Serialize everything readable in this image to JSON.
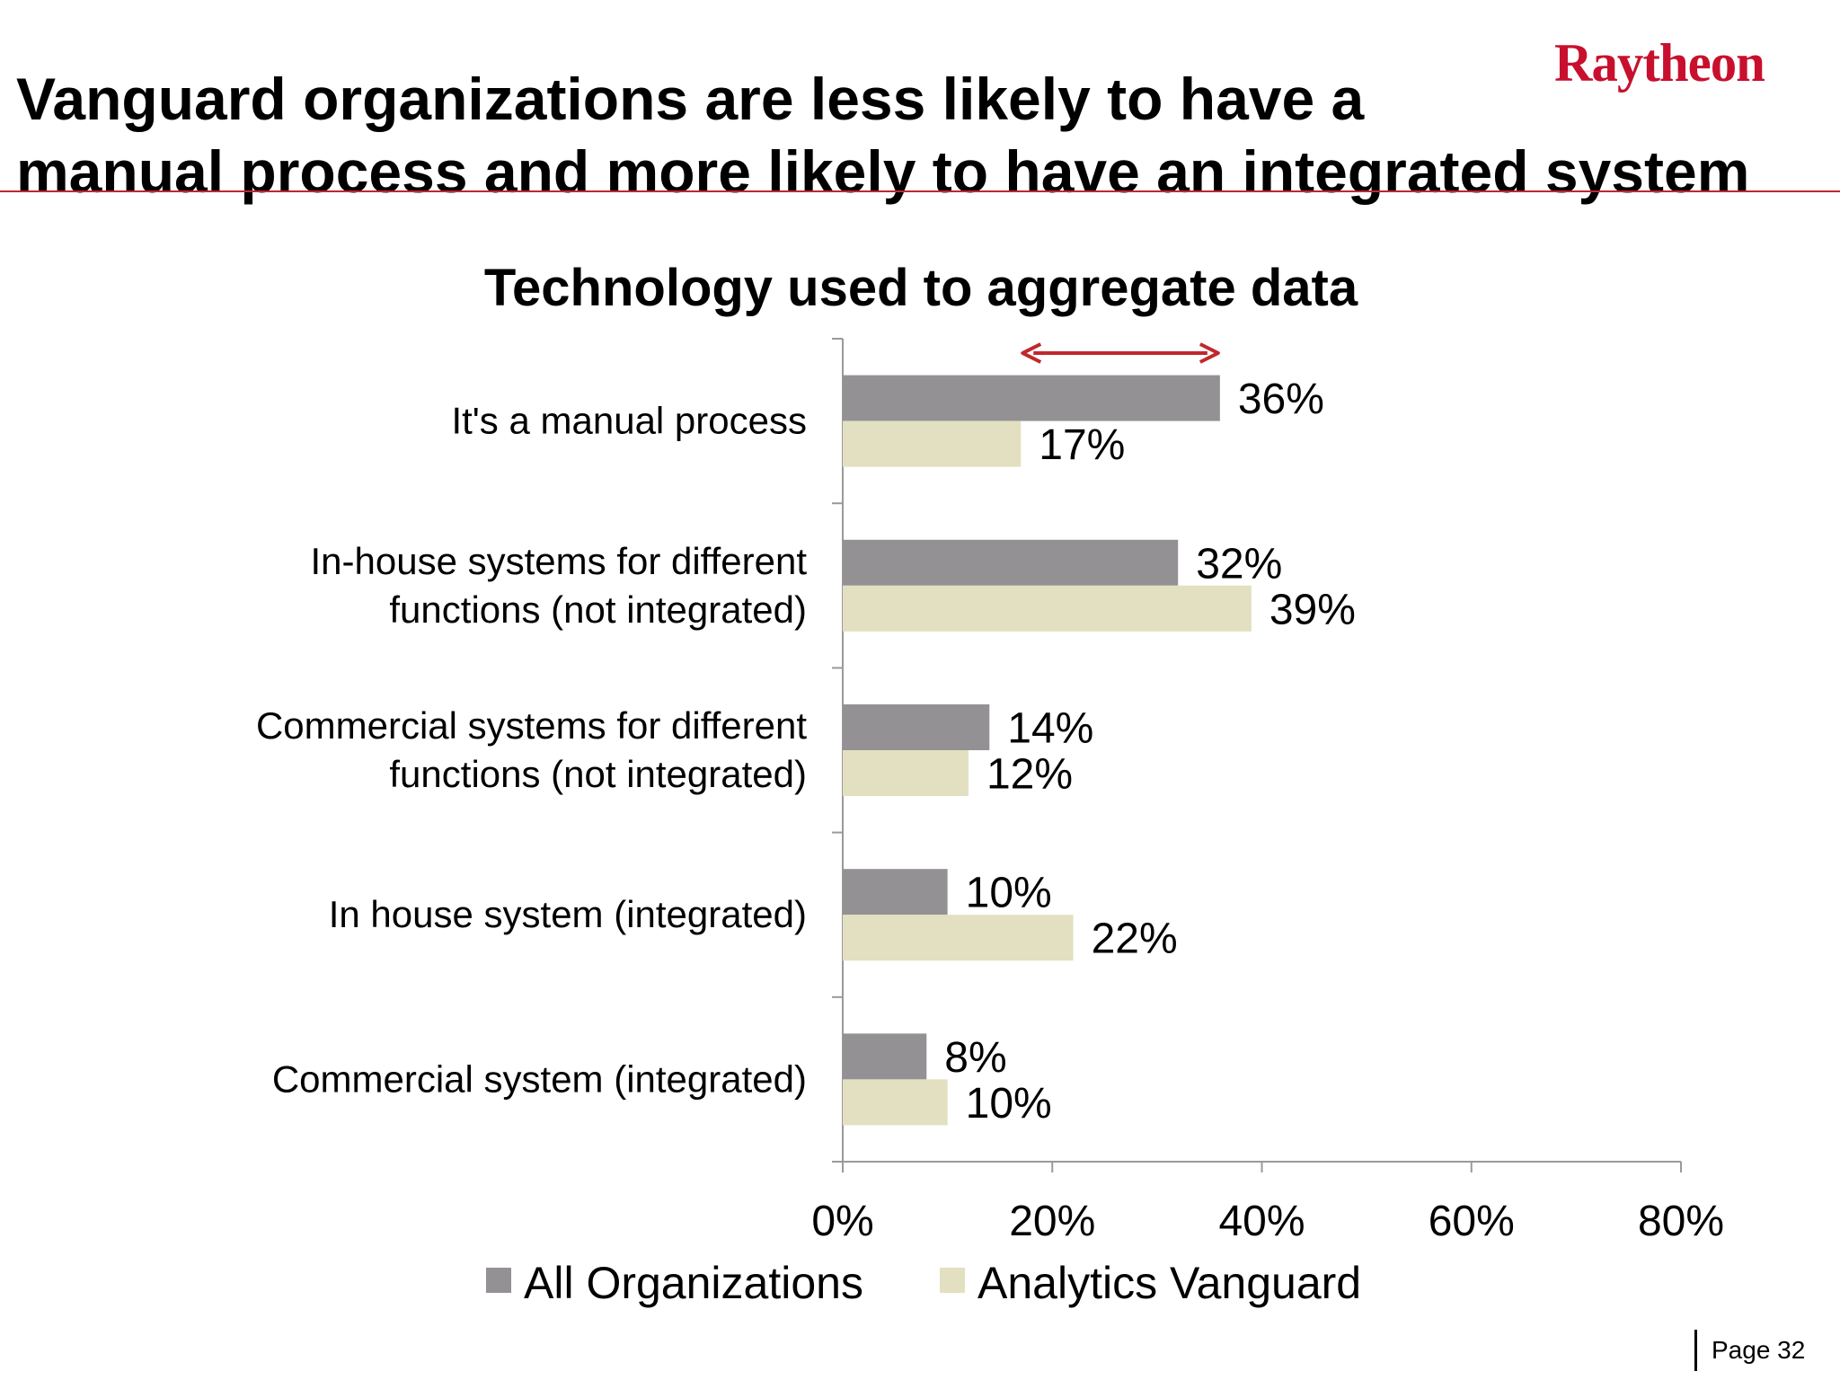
{
  "slide": {
    "title_line1": "Vanguard organizations are less likely to have a",
    "title_line2": "manual process and more likely to have an integrated system",
    "logo_text": "Raytheon",
    "page_label": "Page 32",
    "accent_color": "#c0282d",
    "logo_color": "#c8102e"
  },
  "chart_data": {
    "type": "bar",
    "orientation": "horizontal",
    "title": "Technology used to aggregate data",
    "categories": [
      "It's a manual process",
      "In-house systems for different functions (not integrated)",
      "Commercial systems for different functions (not integrated)",
      "In house system (integrated)",
      "Commercial system (integrated)"
    ],
    "category_lines": [
      [
        "It's a manual process"
      ],
      [
        "In-house systems for different",
        "functions (not integrated)"
      ],
      [
        "Commercial systems for different",
        "functions (not integrated)"
      ],
      [
        "In house system (integrated)"
      ],
      [
        "Commercial system (integrated)"
      ]
    ],
    "series": [
      {
        "name": "All Organizations",
        "values": [
          36,
          32,
          14,
          10,
          8
        ],
        "labels": [
          "36%",
          "32%",
          "14%",
          "10%",
          "8%"
        ],
        "color": "#939193"
      },
      {
        "name": "Analytics Vanguard",
        "values": [
          17,
          39,
          12,
          22,
          10
        ],
        "labels": [
          "17%",
          "39%",
          "12%",
          "22%",
          "10%"
        ],
        "color": "#e2e0c0"
      }
    ],
    "xlim": [
      0,
      80
    ],
    "xticks": [
      0,
      20,
      40,
      60,
      80
    ],
    "xtick_labels": [
      "0%",
      "20%",
      "40%",
      "60%",
      "80%"
    ],
    "grid": false,
    "legend_position": "bottom",
    "annotation": {
      "type": "double-arrow",
      "category_index": 0,
      "from": 17,
      "to": 36,
      "color": "#c0282d"
    }
  }
}
